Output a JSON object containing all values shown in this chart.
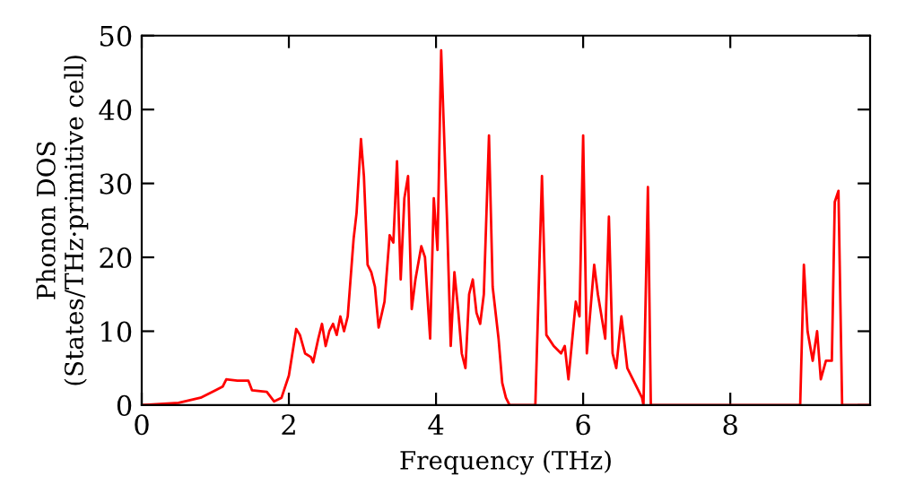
{
  "chart_data": {
    "type": "line",
    "xlabel": "Frequency (THz)",
    "ylabel": "Phonon DOS\n(States/THz·primitive cell)",
    "xlim": [
      0,
      9.9
    ],
    "ylim": [
      0,
      50
    ],
    "xticks": [
      0,
      2,
      4,
      6,
      8
    ],
    "yticks": [
      0,
      10,
      20,
      30,
      40,
      50
    ],
    "grid": false,
    "marker": "none",
    "line_style": "solid",
    "series": [
      {
        "color": "#ff0000",
        "x": [
          0,
          0.5,
          0.8,
          1.0,
          1.1,
          1.15,
          1.3,
          1.45,
          1.5,
          1.7,
          1.8,
          1.9,
          2.0,
          2.1,
          2.15,
          2.22,
          2.3,
          2.33,
          2.4,
          2.45,
          2.5,
          2.55,
          2.6,
          2.65,
          2.7,
          2.75,
          2.8,
          2.88,
          2.92,
          2.98,
          3.02,
          3.07,
          3.12,
          3.17,
          3.22,
          3.3,
          3.37,
          3.42,
          3.47,
          3.52,
          3.57,
          3.62,
          3.67,
          3.72,
          3.8,
          3.85,
          3.92,
          3.97,
          4.02,
          4.07,
          4.15,
          4.2,
          4.25,
          4.3,
          4.35,
          4.4,
          4.45,
          4.5,
          4.55,
          4.6,
          4.65,
          4.72,
          4.77,
          4.85,
          4.9,
          4.95,
          5.0,
          5.35,
          5.44,
          5.5,
          5.6,
          5.7,
          5.75,
          5.8,
          5.9,
          5.95,
          6.0,
          6.05,
          6.15,
          6.2,
          6.3,
          6.35,
          6.4,
          6.45,
          6.52,
          6.6,
          6.7,
          6.8,
          6.82,
          6.88,
          6.92,
          8.95,
          9.0,
          9.05,
          9.12,
          9.18,
          9.23,
          9.3,
          9.38,
          9.42,
          9.47,
          9.52,
          9.9
        ],
        "values": [
          0,
          0.3,
          1,
          2,
          2.5,
          3.5,
          3.3,
          3.3,
          2,
          1.8,
          0.5,
          1,
          4,
          10.3,
          9.5,
          7,
          6.5,
          5.8,
          9,
          11,
          8,
          10,
          11,
          9.5,
          12,
          10,
          12,
          22.5,
          26,
          36,
          31,
          19,
          18,
          16,
          10.5,
          14,
          23,
          22,
          33,
          17,
          28,
          31,
          13,
          17,
          21.5,
          20,
          9,
          28,
          21,
          48,
          25,
          8,
          18,
          13,
          7,
          5,
          15,
          17,
          12.5,
          11,
          15,
          36.5,
          16,
          9,
          3,
          1,
          0,
          0,
          31,
          9.5,
          8,
          7,
          8,
          3.5,
          14,
          12,
          36.5,
          7,
          19,
          15,
          9,
          25.5,
          7,
          5,
          12,
          5,
          3,
          1,
          0,
          29.5,
          0,
          0,
          19,
          10,
          6,
          10,
          3.5,
          6,
          6,
          27.5,
          29,
          0,
          0
        ]
      }
    ]
  }
}
